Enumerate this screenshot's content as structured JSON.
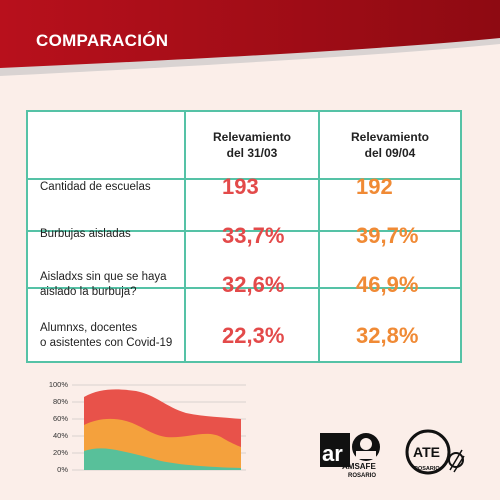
{
  "header": {
    "title": "COMPARACIÓN"
  },
  "table": {
    "headers": [
      "Relevamiento\ndel 31/03",
      "Relevamiento\ndel 09/04"
    ],
    "rows": [
      {
        "label": "Cantidad de escuelas",
        "a": "193",
        "b": "192"
      },
      {
        "label": "Burbujas aisladas",
        "a": "33,7%",
        "b": "39,7%"
      },
      {
        "label": "Aisladxs sin que se haya\naislado la burbuja?",
        "a": "32,6%",
        "b": "46,9%"
      },
      {
        "label": "Alumnxs, docentes\no asistentes con Covid-19",
        "a": "22,3%",
        "b": "32,8%"
      }
    ]
  },
  "decor_chart": {
    "ticks": [
      "100%",
      "80%",
      "60%",
      "40%",
      "20%",
      "0%"
    ]
  },
  "logos": {
    "amsafe": {
      "mark": "ar",
      "name": "AMSAFE",
      "city": "ROSARIO"
    },
    "ate": {
      "mark": "ATE",
      "city": "ROSARIO"
    }
  },
  "colors": {
    "header_red": "#b3101b",
    "table_border": "#55c2a6",
    "value_first": "#e34a4a",
    "value_second": "#f08a35"
  }
}
